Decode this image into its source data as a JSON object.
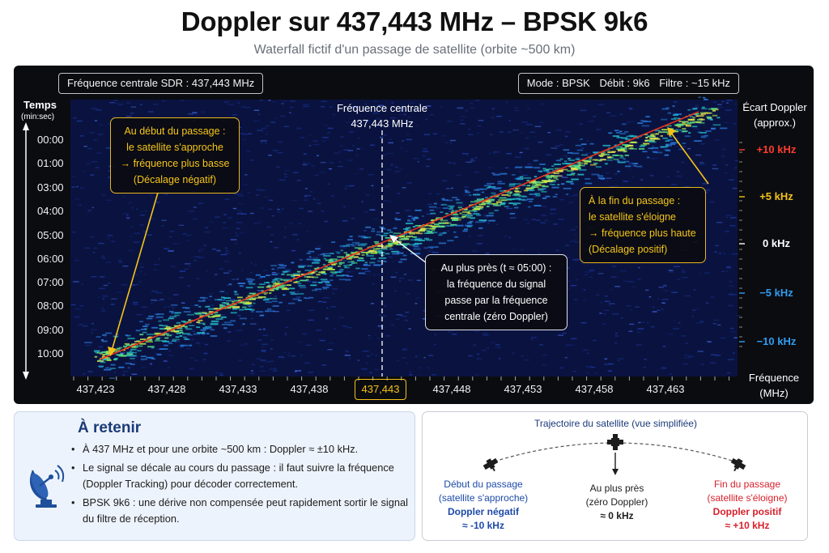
{
  "header": {
    "title": "Doppler sur 437,443 MHz – BPSK 9k6",
    "subtitle": "Waterfall fictif d'un passage de satellite (orbite ~500 km)"
  },
  "waterfall": {
    "sdr_frequency": "Fréquence centrale SDR : 437,443 MHz",
    "mode": "Mode : BPSK",
    "rate": "Débit : 9k6",
    "filter": "Filtre : ~15 kHz",
    "y_axis_title": "Temps",
    "y_axis_unit": "(min:sec)",
    "time_ticks": [
      "00:00",
      "01:00",
      "03:00",
      "04:00",
      "05:00",
      "06:00",
      "07:00",
      "08:00",
      "09:00",
      "10:00"
    ],
    "doppler_title_line1": "Écart Doppler",
    "doppler_title_line2": "(approx.)",
    "doppler_ticks": [
      {
        "label": "+10 kHz",
        "color": "#ff3b30"
      },
      {
        "label": "+5 kHz",
        "color": "#f4c318"
      },
      {
        "label": "0 kHz",
        "color": "#ffffff"
      },
      {
        "label": "−5 kHz",
        "color": "#2f9df0"
      },
      {
        "label": "−10 kHz",
        "color": "#2f9df0"
      }
    ],
    "freq_title_line1": "Fréquence",
    "freq_title_line2": "(MHz)",
    "freq_ticks": [
      "437,423",
      "437,428",
      "437,433",
      "437,438",
      "437,443",
      "437,448",
      "437,453",
      "437,458",
      "437,463"
    ],
    "highlight_tick": "437,443",
    "center_label_line1": "Fréquence centrale",
    "center_label_line2": "437,443 MHz",
    "callout_start": [
      "Au début du passage :",
      "le satellite s'approche",
      "→ fréquence plus basse",
      "(Décalage négatif)"
    ],
    "callout_end": [
      "À la fin du passage :",
      "le satellite s'éloigne",
      "→ fréquence plus haute",
      "(Décalage positif)"
    ],
    "callout_mid": [
      "Au plus près (t ≈ 05:00) :",
      "la fréquence du signal",
      "passe par la fréquence",
      "centrale (zéro Doppler)"
    ]
  },
  "retenir": {
    "title": "À retenir",
    "items": [
      "À 437 MHz et pour une orbite ~500 km : Doppler ≈ ±10 kHz.",
      "Le signal se décale au cours du passage : il faut suivre la fréquence (Doppler Tracking) pour décoder correctement.",
      "BPSK 9k6 : une dérive non compensée peut rapidement sortir le signal du filtre de réception."
    ]
  },
  "trajectory": {
    "title": "Trajectoire du satellite (vue simplifiée)",
    "start": {
      "line1": "Début du passage",
      "line2": "(satellite s'approche)",
      "line3": "Doppler négatif",
      "line4": "≈ -10 kHz"
    },
    "mid": {
      "line1": "Au plus près",
      "line2": "(zéro Doppler)",
      "line3": "≈ 0 kHz"
    },
    "end": {
      "line1": "Fin du passage",
      "line2": "(satellite s'éloigne)",
      "line3": "Doppler positif",
      "line4": "≈ +10 kHz"
    }
  },
  "colors": {
    "accent_yellow": "#f4c318",
    "accent_red": "#ff3b30",
    "accent_blue": "#2f9df0",
    "trace": "#e8321e"
  }
}
